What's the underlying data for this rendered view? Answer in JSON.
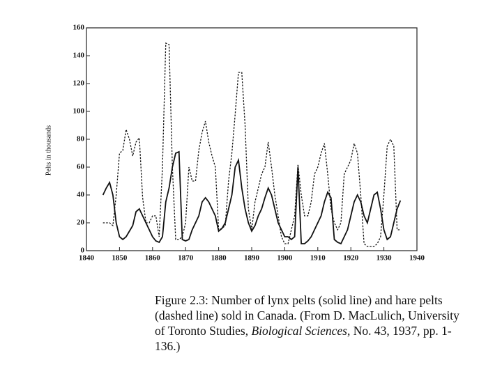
{
  "chart_data": {
    "type": "line",
    "ylabel": "Pelts in thousands",
    "x": [
      1845,
      1846,
      1847,
      1848,
      1849,
      1850,
      1851,
      1852,
      1853,
      1854,
      1855,
      1856,
      1857,
      1858,
      1859,
      1860,
      1861,
      1862,
      1863,
      1864,
      1865,
      1866,
      1867,
      1868,
      1869,
      1870,
      1871,
      1872,
      1873,
      1874,
      1875,
      1876,
      1877,
      1878,
      1879,
      1880,
      1881,
      1882,
      1883,
      1884,
      1885,
      1886,
      1887,
      1888,
      1889,
      1890,
      1891,
      1892,
      1893,
      1894,
      1895,
      1896,
      1897,
      1898,
      1899,
      1900,
      1901,
      1902,
      1903,
      1904,
      1905,
      1906,
      1907,
      1908,
      1909,
      1910,
      1911,
      1912,
      1913,
      1914,
      1915,
      1916,
      1917,
      1918,
      1919,
      1920,
      1921,
      1922,
      1923,
      1924,
      1925,
      1926,
      1927,
      1928,
      1929,
      1930,
      1931,
      1932,
      1933,
      1934,
      1935
    ],
    "series": [
      {
        "color": "#111111",
        "dash": "solid",
        "values": [
          40,
          45,
          49,
          40,
          20,
          10,
          8,
          10,
          14,
          18,
          28,
          30,
          25,
          20,
          15,
          10,
          7,
          6,
          10,
          35,
          45,
          60,
          70,
          71,
          8,
          7,
          8,
          15,
          20,
          25,
          35,
          38,
          35,
          30,
          25,
          14,
          16,
          20,
          30,
          40,
          60,
          65,
          45,
          30,
          20,
          14,
          18,
          25,
          30,
          38,
          45,
          40,
          30,
          20,
          15,
          10,
          10,
          8,
          10,
          60,
          5,
          5,
          7,
          10,
          15,
          20,
          25,
          35,
          42,
          38,
          8,
          6,
          5,
          10,
          15,
          25,
          35,
          40,
          35,
          25,
          20,
          30,
          40,
          42,
          30,
          15,
          8,
          10,
          20,
          30,
          36
        ]
      },
      {
        "color": "#111111",
        "dash": "dashed",
        "values": [
          20,
          20,
          20,
          18,
          40,
          70,
          72,
          87,
          80,
          68,
          78,
          81,
          38,
          20,
          20,
          25,
          25,
          10,
          60,
          149,
          148,
          60,
          8,
          8,
          10,
          20,
          60,
          50,
          50,
          72,
          85,
          93,
          78,
          68,
          60,
          15,
          16,
          18,
          50,
          70,
          98,
          128,
          128,
          90,
          30,
          15,
          35,
          45,
          55,
          60,
          78,
          60,
          40,
          25,
          10,
          5,
          5,
          15,
          25,
          62,
          40,
          25,
          25,
          35,
          55,
          60,
          70,
          77,
          55,
          30,
          20,
          15,
          20,
          55,
          60,
          65,
          77,
          70,
          40,
          5,
          3,
          3,
          3,
          5,
          10,
          40,
          75,
          80,
          75,
          15,
          15
        ]
      }
    ],
    "xlim": [
      1840,
      1940
    ],
    "xticks": [
      1840,
      1850,
      1860,
      1870,
      1880,
      1890,
      1900,
      1910,
      1920,
      1930,
      1940
    ],
    "ylim": [
      0,
      160
    ],
    "yticks": [
      0,
      20,
      40,
      60,
      80,
      100,
      120,
      140,
      160
    ],
    "grid": false,
    "caption": [
      "Figure 2.3: Number of lynx pelts (solid line) and hare pelts (dashed line) sold in Canada.  (From D. MacLulich, University of Toronto Studies, ",
      "Biological Sciences",
      ", No. 43, 1937, pp. 1-136.)"
    ]
  }
}
